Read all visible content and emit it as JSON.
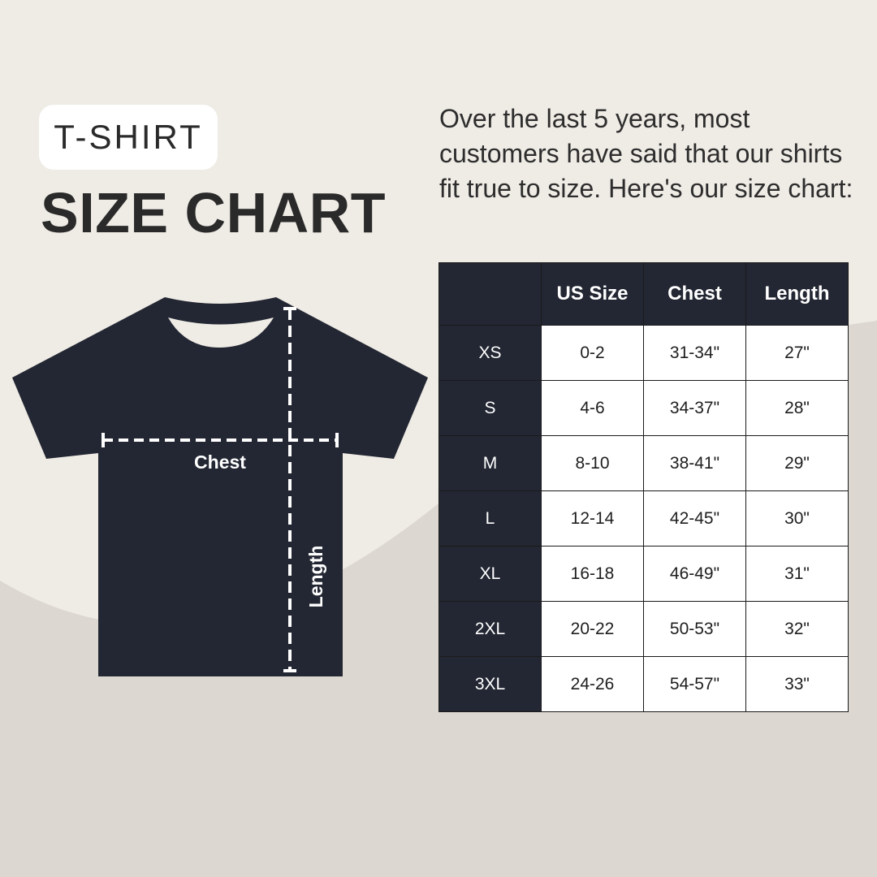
{
  "badge": "T-SHIRT",
  "title": "SIZE CHART",
  "intro": "Over the last 5 years, most customers have said that our shirts fit true to size. Here's our size chart:",
  "diagram": {
    "chest_label": "Chest",
    "length_label": "Length"
  },
  "colors": {
    "background": "#efebe5",
    "background_curve": "#dcd7d0",
    "shirt": "#232733",
    "header": "#232733"
  },
  "table": {
    "headers": [
      "",
      "US Size",
      "Chest",
      "Length"
    ],
    "rows": [
      [
        "XS",
        "0-2",
        "31-34\"",
        "27\""
      ],
      [
        "S",
        "4-6",
        "34-37\"",
        "28\""
      ],
      [
        "M",
        "8-10",
        "38-41\"",
        "29\""
      ],
      [
        "L",
        "12-14",
        "42-45\"",
        "30\""
      ],
      [
        "XL",
        "16-18",
        "46-49\"",
        "31\""
      ],
      [
        "2XL",
        "20-22",
        "50-53\"",
        "32\""
      ],
      [
        "3XL",
        "24-26",
        "54-57\"",
        "33\""
      ]
    ]
  }
}
